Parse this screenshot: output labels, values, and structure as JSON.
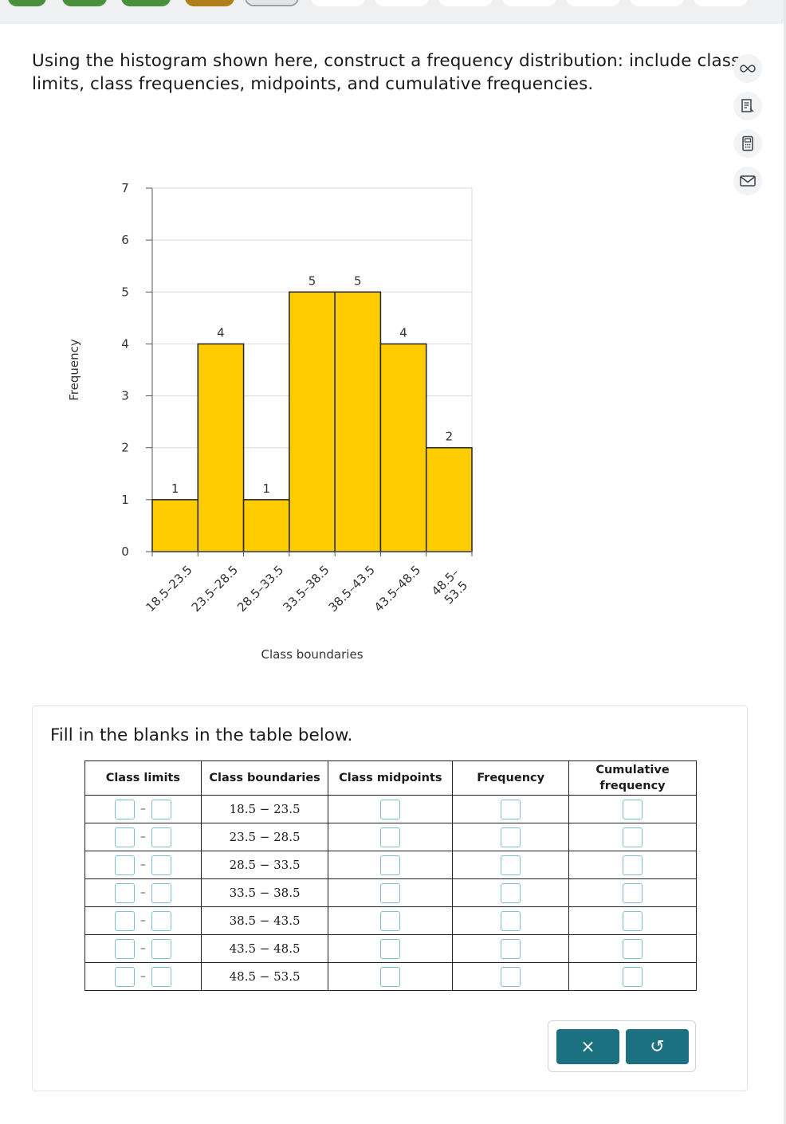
{
  "question": {
    "text": "Using the histogram shown here, construct a frequency distribution: include class limits, class frequencies, midpoints, and cumulative frequencies."
  },
  "side_tools": [
    {
      "icon": "infinity-icon"
    },
    {
      "icon": "notes-icon"
    },
    {
      "icon": "calculator-icon"
    },
    {
      "icon": "mail-icon"
    }
  ],
  "chart_data": {
    "type": "bar",
    "xlabel": "Class boundaries",
    "ylabel": "Frequency",
    "ylim": [
      0,
      7
    ],
    "yticks": [
      0,
      1,
      2,
      3,
      4,
      5,
      6,
      7
    ],
    "grid": true,
    "categories": [
      "18.5–23.5",
      "23.5–28.5",
      "28.5–33.5",
      "33.5–38.5",
      "38.5–43.5",
      "43.5–48.5",
      "48.5–53.5"
    ],
    "category_lines": [
      [
        "18.5–23.5"
      ],
      [
        "23.5–28.5"
      ],
      [
        "28.5–33.5"
      ],
      [
        "33.5–38.5"
      ],
      [
        "38.5–43.5"
      ],
      [
        "43.5–48.5"
      ],
      [
        "48.5–",
        "53.5"
      ]
    ],
    "values": [
      1,
      4,
      1,
      5,
      5,
      4,
      2
    ],
    "bar_color": "#ffcc00",
    "bar_edge_color": "#222222"
  },
  "fill": {
    "prompt": "Fill in the blanks in the table below.",
    "headers": {
      "limits": "Class limits",
      "boundaries": "Class boundaries",
      "midpoints": "Class midpoints",
      "frequency": "Frequency",
      "cumulative": "Cumulative frequency"
    },
    "dash": "–",
    "rows": [
      {
        "boundary": "18.5 − 23.5"
      },
      {
        "boundary": "23.5 − 28.5"
      },
      {
        "boundary": "28.5 − 33.5"
      },
      {
        "boundary": "33.5 − 38.5"
      },
      {
        "boundary": "38.5 − 43.5"
      },
      {
        "boundary": "43.5 − 48.5"
      },
      {
        "boundary": "48.5 − 53.5"
      }
    ]
  },
  "actions": {
    "clear_label": "×",
    "undo_label": "↺"
  }
}
